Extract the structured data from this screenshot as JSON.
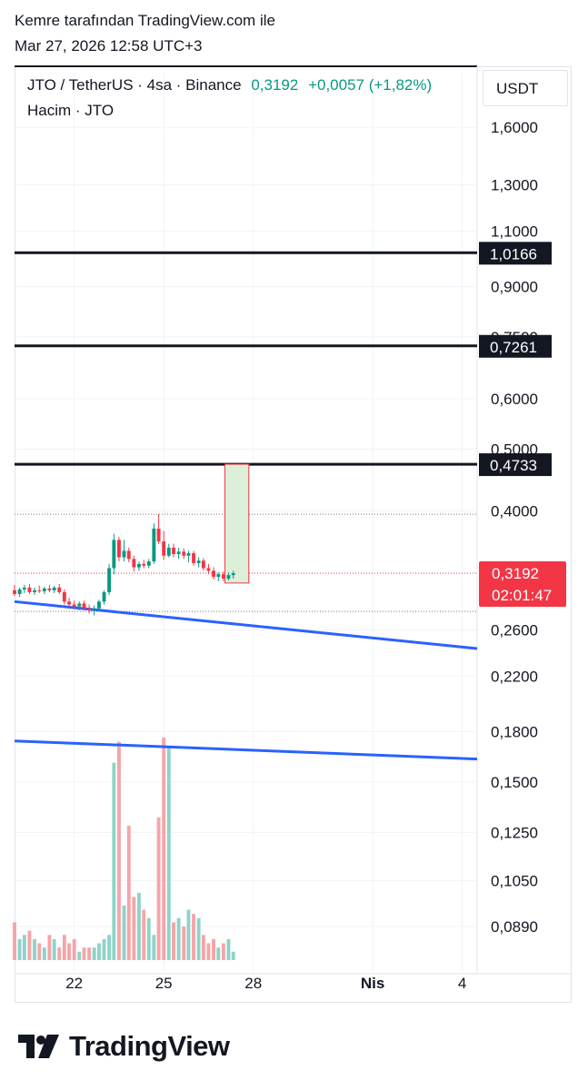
{
  "header": {
    "author_line": "Kemre tarafından TradingView.com ile",
    "date_line": "Mar 27, 2026 12:58 UTC+3"
  },
  "legend": {
    "symbol": "JTO / TetherUS · 4sa · Binance",
    "price": "0,3192",
    "change": "+0,0057 (+1,82%)",
    "volume_label": "Hacim · JTO"
  },
  "currency_button": "USDT",
  "brand": "TradingView",
  "colors": {
    "up": "#089981",
    "down": "#f23645",
    "up_vol": "#8fd3c9",
    "down_vol": "#f5a5a8",
    "trendline": "#2962ff",
    "level_line": "#131722",
    "box_fill": "#dcefd8",
    "box_border": "#f23645"
  },
  "chart_data": {
    "type": "candlestick",
    "scale": "log",
    "y_ticks": [
      "1,6000",
      "1,3000",
      "1,1000",
      "0,9000",
      "0,7500",
      "0,6000",
      "0,5000",
      "0,4000",
      "0,2600",
      "0,2200",
      "0,1800",
      "0,1500",
      "0,1250",
      "0,1050",
      "0,0890"
    ],
    "y_tick_values": [
      1.6,
      1.3,
      1.1,
      0.9,
      0.75,
      0.6,
      0.5,
      0.4,
      0.26,
      0.22,
      0.18,
      0.15,
      0.125,
      0.105,
      0.089
    ],
    "x_ticks": [
      "22",
      "25",
      "28",
      "Nis",
      "4"
    ],
    "x_tick_days": [
      22,
      25,
      28,
      32,
      35
    ],
    "x_range_days": [
      20,
      35.5
    ],
    "y_range": [
      0.078,
      1.95
    ],
    "levels": [
      {
        "label": "1,0166",
        "value": 1.0166
      },
      {
        "label": "0,7261",
        "value": 0.7261
      },
      {
        "label": "0,4733",
        "value": 0.4733
      }
    ],
    "current_price": {
      "label": "0,3192",
      "value": 0.3192,
      "countdown": "02:01:47"
    },
    "dotted_levels": [
      0.395,
      0.3192,
      0.278
    ],
    "trendlines": [
      {
        "from": [
          20,
          0.288
        ],
        "to": [
          35.5,
          0.243
        ]
      },
      {
        "from": [
          20,
          0.174
        ],
        "to": [
          35.5,
          0.163
        ]
      }
    ],
    "box": {
      "x_from": 27.05,
      "x_to": 27.85,
      "low": 0.308,
      "high": 0.4733
    },
    "candles": [
      {
        "d": 20.0,
        "o": 0.3,
        "h": 0.306,
        "l": 0.294,
        "c": 0.296
      },
      {
        "d": 20.17,
        "o": 0.296,
        "h": 0.303,
        "l": 0.293,
        "c": 0.301
      },
      {
        "d": 20.33,
        "o": 0.301,
        "h": 0.306,
        "l": 0.297,
        "c": 0.303
      },
      {
        "d": 20.5,
        "o": 0.303,
        "h": 0.307,
        "l": 0.296,
        "c": 0.298
      },
      {
        "d": 20.67,
        "o": 0.298,
        "h": 0.303,
        "l": 0.295,
        "c": 0.3
      },
      {
        "d": 20.83,
        "o": 0.3,
        "h": 0.305,
        "l": 0.297,
        "c": 0.299
      },
      {
        "d": 21.0,
        "o": 0.299,
        "h": 0.304,
        "l": 0.296,
        "c": 0.302
      },
      {
        "d": 21.17,
        "o": 0.302,
        "h": 0.306,
        "l": 0.298,
        "c": 0.3
      },
      {
        "d": 21.33,
        "o": 0.3,
        "h": 0.305,
        "l": 0.297,
        "c": 0.303
      },
      {
        "d": 21.5,
        "o": 0.303,
        "h": 0.307,
        "l": 0.296,
        "c": 0.298
      },
      {
        "d": 21.67,
        "o": 0.298,
        "h": 0.301,
        "l": 0.285,
        "c": 0.288
      },
      {
        "d": 21.83,
        "o": 0.288,
        "h": 0.292,
        "l": 0.282,
        "c": 0.285
      },
      {
        "d": 22.0,
        "o": 0.285,
        "h": 0.289,
        "l": 0.28,
        "c": 0.283
      },
      {
        "d": 22.17,
        "o": 0.283,
        "h": 0.288,
        "l": 0.279,
        "c": 0.286
      },
      {
        "d": 22.33,
        "o": 0.286,
        "h": 0.289,
        "l": 0.279,
        "c": 0.281
      },
      {
        "d": 22.5,
        "o": 0.281,
        "h": 0.285,
        "l": 0.276,
        "c": 0.279
      },
      {
        "d": 22.67,
        "o": 0.279,
        "h": 0.284,
        "l": 0.274,
        "c": 0.281
      },
      {
        "d": 22.83,
        "o": 0.281,
        "h": 0.29,
        "l": 0.278,
        "c": 0.288
      },
      {
        "d": 23.0,
        "o": 0.288,
        "h": 0.3,
        "l": 0.285,
        "c": 0.298
      },
      {
        "d": 23.17,
        "o": 0.298,
        "h": 0.33,
        "l": 0.295,
        "c": 0.325
      },
      {
        "d": 23.33,
        "o": 0.325,
        "h": 0.368,
        "l": 0.318,
        "c": 0.36
      },
      {
        "d": 23.5,
        "o": 0.36,
        "h": 0.364,
        "l": 0.333,
        "c": 0.338
      },
      {
        "d": 23.67,
        "o": 0.338,
        "h": 0.36,
        "l": 0.333,
        "c": 0.346
      },
      {
        "d": 23.83,
        "o": 0.346,
        "h": 0.35,
        "l": 0.332,
        "c": 0.336
      },
      {
        "d": 24.0,
        "o": 0.336,
        "h": 0.34,
        "l": 0.321,
        "c": 0.326
      },
      {
        "d": 24.17,
        "o": 0.326,
        "h": 0.333,
        "l": 0.322,
        "c": 0.33
      },
      {
        "d": 24.33,
        "o": 0.33,
        "h": 0.335,
        "l": 0.325,
        "c": 0.328
      },
      {
        "d": 24.5,
        "o": 0.328,
        "h": 0.336,
        "l": 0.325,
        "c": 0.333
      },
      {
        "d": 24.67,
        "o": 0.333,
        "h": 0.382,
        "l": 0.33,
        "c": 0.375
      },
      {
        "d": 24.83,
        "o": 0.375,
        "h": 0.395,
        "l": 0.355,
        "c": 0.358
      },
      {
        "d": 25.0,
        "o": 0.358,
        "h": 0.372,
        "l": 0.335,
        "c": 0.34
      },
      {
        "d": 25.17,
        "o": 0.34,
        "h": 0.355,
        "l": 0.338,
        "c": 0.35
      },
      {
        "d": 25.33,
        "o": 0.35,
        "h": 0.355,
        "l": 0.338,
        "c": 0.342
      },
      {
        "d": 25.5,
        "o": 0.342,
        "h": 0.35,
        "l": 0.336,
        "c": 0.345
      },
      {
        "d": 25.67,
        "o": 0.345,
        "h": 0.349,
        "l": 0.336,
        "c": 0.34
      },
      {
        "d": 25.83,
        "o": 0.34,
        "h": 0.346,
        "l": 0.332,
        "c": 0.343
      },
      {
        "d": 26.0,
        "o": 0.343,
        "h": 0.346,
        "l": 0.328,
        "c": 0.331
      },
      {
        "d": 26.17,
        "o": 0.331,
        "h": 0.338,
        "l": 0.326,
        "c": 0.334
      },
      {
        "d": 26.33,
        "o": 0.334,
        "h": 0.337,
        "l": 0.322,
        "c": 0.325
      },
      {
        "d": 26.5,
        "o": 0.325,
        "h": 0.33,
        "l": 0.318,
        "c": 0.322
      },
      {
        "d": 26.67,
        "o": 0.322,
        "h": 0.326,
        "l": 0.312,
        "c": 0.315
      },
      {
        "d": 26.83,
        "o": 0.315,
        "h": 0.32,
        "l": 0.31,
        "c": 0.318
      },
      {
        "d": 27.0,
        "o": 0.318,
        "h": 0.321,
        "l": 0.31,
        "c": 0.313
      },
      {
        "d": 27.17,
        "o": 0.313,
        "h": 0.32,
        "l": 0.311,
        "c": 0.317
      },
      {
        "d": 27.33,
        "o": 0.317,
        "h": 0.322,
        "l": 0.313,
        "c": 0.3192
      }
    ],
    "volume": [
      9,
      5,
      6,
      7,
      5,
      4,
      3,
      6,
      5,
      3,
      6,
      4,
      5,
      2,
      3,
      3,
      3,
      4,
      5,
      6,
      47,
      52,
      13,
      32,
      15,
      16,
      12,
      10,
      6,
      34,
      53,
      51,
      9,
      10,
      8,
      12,
      11,
      10,
      6,
      4,
      5,
      3,
      4,
      5,
      2
    ]
  }
}
